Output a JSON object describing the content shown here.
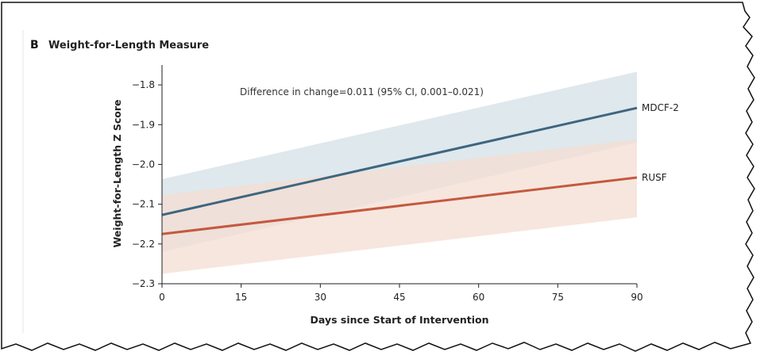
{
  "panel": {
    "letter": "B",
    "title": "Weight-for-Length Measure"
  },
  "annotation": "Difference in change=0.011 (95% CI, 0.001–0.021)",
  "colors": {
    "mdcf2_line": "#3d6680",
    "mdcf2_band": "#dbe6ea",
    "rusf_line": "#c4593f",
    "rusf_band": "#f4ddd3",
    "axis": "#222222"
  },
  "chart_data": {
    "type": "line",
    "title": "Weight-for-Length Measure",
    "xlabel": "Days since Start of Intervention",
    "ylabel": "Weight-for-Length Z Score",
    "xlim": [
      0,
      90
    ],
    "ylim": [
      -2.3,
      -1.75
    ],
    "x_ticks": [
      0,
      15,
      30,
      45,
      60,
      75,
      90
    ],
    "x_tick_labels": [
      "0",
      "15",
      "30",
      "45",
      "60",
      "75",
      "90"
    ],
    "y_ticks": [
      -2.3,
      -2.2,
      -2.1,
      -2.0,
      -1.9,
      -1.8
    ],
    "y_tick_labels": [
      "−2.3",
      "−2.2",
      "−2.1",
      "−2.0",
      "−1.9",
      "−1.8"
    ],
    "grid": false,
    "series": [
      {
        "name": "MDCF-2",
        "x": [
          0,
          90
        ],
        "y": [
          -2.127,
          -1.858
        ],
        "ci_lower_start": -2.22,
        "ci_lower_end": -1.945,
        "ci_upper_start": -2.037,
        "ci_upper_end": -1.767
      },
      {
        "name": "RUSF",
        "x": [
          0,
          90
        ],
        "y": [
          -2.175,
          -2.033
        ],
        "ci_lower_start": -2.275,
        "ci_lower_end": -2.133,
        "ci_upper_start": -2.077,
        "ci_upper_end": -1.937
      }
    ]
  }
}
